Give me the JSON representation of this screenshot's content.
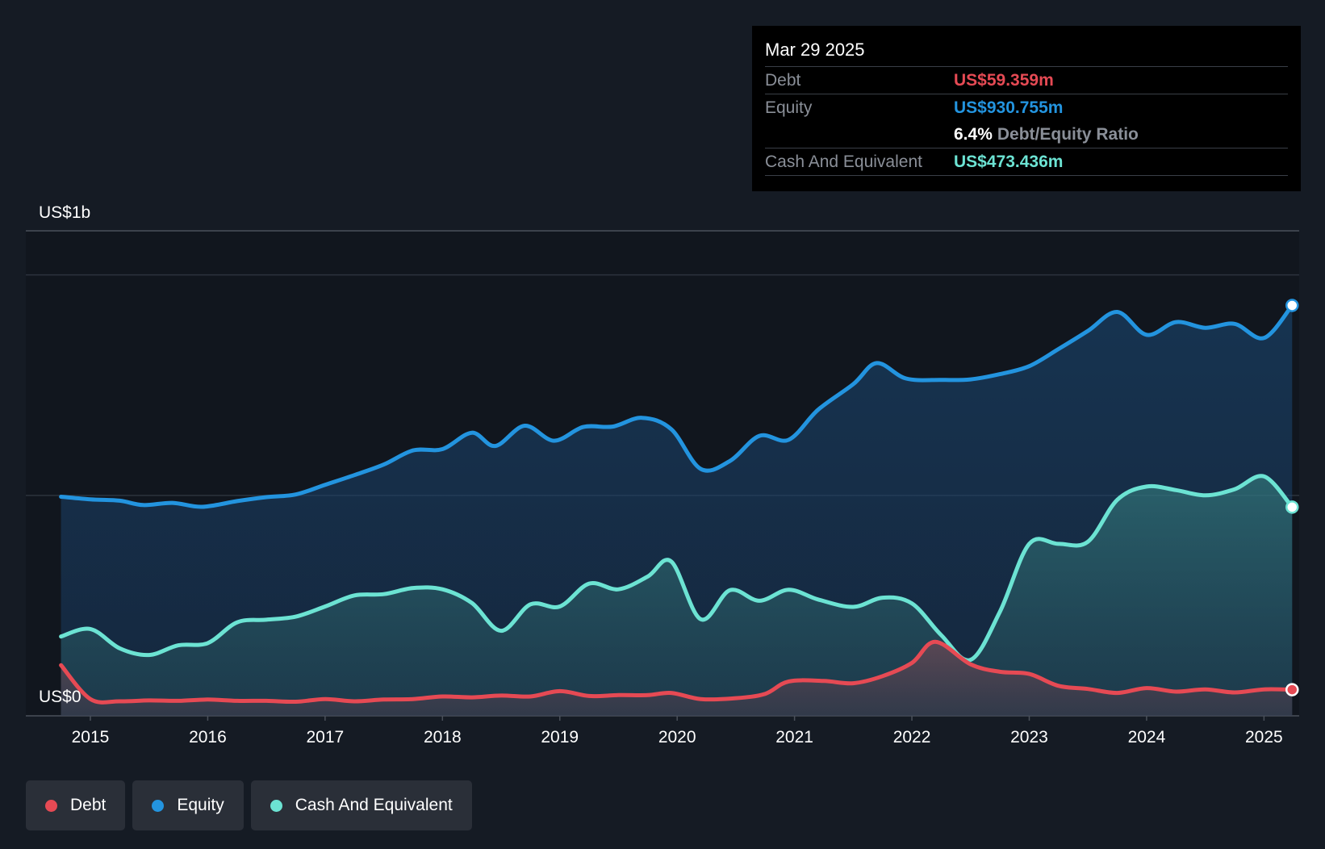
{
  "colors": {
    "background": "#151b24",
    "debt": "#e64a54",
    "equity": "#2394df",
    "cash": "#6ce3d3"
  },
  "tooltip": {
    "date": "Mar 29 2025",
    "debt_label": "Debt",
    "debt_value": "US$59.359m",
    "equity_label": "Equity",
    "equity_value": "US$930.755m",
    "ratio_value": "6.4%",
    "ratio_label": "Debt/Equity Ratio",
    "cash_label": "Cash And Equivalent",
    "cash_value": "US$473.436m"
  },
  "legend": {
    "debt": "Debt",
    "equity": "Equity",
    "cash": "Cash And Equivalent"
  },
  "chart_data": {
    "type": "area",
    "title": "",
    "xlabel": "",
    "ylabel": "",
    "y_top_label": "US$1b",
    "y_bottom_label": "US$0",
    "ylim": [
      0,
      1100
    ],
    "xlim": [
      2014.45,
      2025.3
    ],
    "x_ticks": [
      2015,
      2016,
      2017,
      2018,
      2019,
      2020,
      2021,
      2022,
      2023,
      2024,
      2025
    ],
    "x_tick_labels": [
      "2015",
      "2016",
      "2017",
      "2018",
      "2019",
      "2020",
      "2021",
      "2022",
      "2023",
      "2024",
      "2025"
    ],
    "gridlines": [
      500,
      1000
    ],
    "series": [
      {
        "name": "Equity",
        "key": "equity",
        "points": [
          [
            2014.75,
            497
          ],
          [
            2015.0,
            491
          ],
          [
            2015.25,
            488
          ],
          [
            2015.45,
            478
          ],
          [
            2015.7,
            483
          ],
          [
            2015.95,
            474
          ],
          [
            2016.25,
            487
          ],
          [
            2016.5,
            496
          ],
          [
            2016.75,
            502
          ],
          [
            2017.0,
            524
          ],
          [
            2017.25,
            546
          ],
          [
            2017.5,
            570
          ],
          [
            2017.75,
            602
          ],
          [
            2018.0,
            605
          ],
          [
            2018.25,
            642
          ],
          [
            2018.45,
            612
          ],
          [
            2018.7,
            658
          ],
          [
            2018.95,
            624
          ],
          [
            2019.2,
            655
          ],
          [
            2019.45,
            656
          ],
          [
            2019.7,
            676
          ],
          [
            2019.95,
            650
          ],
          [
            2020.2,
            560
          ],
          [
            2020.45,
            578
          ],
          [
            2020.7,
            635
          ],
          [
            2020.95,
            626
          ],
          [
            2021.2,
            694
          ],
          [
            2021.5,
            752
          ],
          [
            2021.7,
            800
          ],
          [
            2021.95,
            765
          ],
          [
            2022.25,
            762
          ],
          [
            2022.5,
            763
          ],
          [
            2022.75,
            775
          ],
          [
            2023.0,
            793
          ],
          [
            2023.25,
            832
          ],
          [
            2023.5,
            873
          ],
          [
            2023.75,
            916
          ],
          [
            2024.0,
            864
          ],
          [
            2024.25,
            893
          ],
          [
            2024.5,
            880
          ],
          [
            2024.75,
            889
          ],
          [
            2025.0,
            857
          ],
          [
            2025.24,
            930.755
          ]
        ]
      },
      {
        "name": "Cash And Equivalent",
        "key": "cash",
        "points": [
          [
            2014.75,
            180
          ],
          [
            2015.0,
            197
          ],
          [
            2015.25,
            153
          ],
          [
            2015.5,
            138
          ],
          [
            2015.75,
            160
          ],
          [
            2016.0,
            165
          ],
          [
            2016.25,
            212
          ],
          [
            2016.5,
            218
          ],
          [
            2016.75,
            225
          ],
          [
            2017.0,
            248
          ],
          [
            2017.25,
            273
          ],
          [
            2017.5,
            276
          ],
          [
            2017.75,
            290
          ],
          [
            2018.0,
            287
          ],
          [
            2018.25,
            256
          ],
          [
            2018.5,
            193
          ],
          [
            2018.75,
            253
          ],
          [
            2019.0,
            248
          ],
          [
            2019.25,
            300
          ],
          [
            2019.5,
            287
          ],
          [
            2019.75,
            316
          ],
          [
            2019.95,
            350
          ],
          [
            2020.2,
            219
          ],
          [
            2020.45,
            285
          ],
          [
            2020.7,
            261
          ],
          [
            2020.95,
            286
          ],
          [
            2021.2,
            264
          ],
          [
            2021.5,
            247
          ],
          [
            2021.75,
            268
          ],
          [
            2022.0,
            255
          ],
          [
            2022.25,
            183
          ],
          [
            2022.5,
            127
          ],
          [
            2022.75,
            236
          ],
          [
            2023.0,
            390
          ],
          [
            2023.25,
            390
          ],
          [
            2023.5,
            395
          ],
          [
            2023.75,
            490
          ],
          [
            2024.0,
            520
          ],
          [
            2024.25,
            512
          ],
          [
            2024.5,
            500
          ],
          [
            2024.75,
            514
          ],
          [
            2025.0,
            543
          ],
          [
            2025.24,
            473.436
          ]
        ]
      },
      {
        "name": "Debt",
        "key": "debt",
        "points": [
          [
            2014.75,
            115
          ],
          [
            2015.0,
            38
          ],
          [
            2015.25,
            33
          ],
          [
            2015.5,
            35
          ],
          [
            2015.75,
            34
          ],
          [
            2016.0,
            37
          ],
          [
            2016.25,
            34
          ],
          [
            2016.5,
            34
          ],
          [
            2016.75,
            32
          ],
          [
            2017.0,
            38
          ],
          [
            2017.25,
            33
          ],
          [
            2017.5,
            37
          ],
          [
            2017.75,
            38
          ],
          [
            2018.0,
            44
          ],
          [
            2018.25,
            42
          ],
          [
            2018.5,
            46
          ],
          [
            2018.75,
            44
          ],
          [
            2019.0,
            56
          ],
          [
            2019.25,
            45
          ],
          [
            2019.5,
            47
          ],
          [
            2019.75,
            47
          ],
          [
            2019.95,
            52
          ],
          [
            2020.2,
            38
          ],
          [
            2020.5,
            40
          ],
          [
            2020.75,
            50
          ],
          [
            2020.95,
            78
          ],
          [
            2021.25,
            79
          ],
          [
            2021.5,
            74
          ],
          [
            2021.75,
            90
          ],
          [
            2022.0,
            120
          ],
          [
            2022.2,
            168
          ],
          [
            2022.5,
            117
          ],
          [
            2022.75,
            100
          ],
          [
            2023.0,
            95
          ],
          [
            2023.25,
            68
          ],
          [
            2023.5,
            61
          ],
          [
            2023.75,
            52
          ],
          [
            2024.0,
            63
          ],
          [
            2024.25,
            55
          ],
          [
            2024.5,
            60
          ],
          [
            2024.75,
            53
          ],
          [
            2025.0,
            60
          ],
          [
            2025.24,
            59.359
          ]
        ]
      }
    ]
  }
}
